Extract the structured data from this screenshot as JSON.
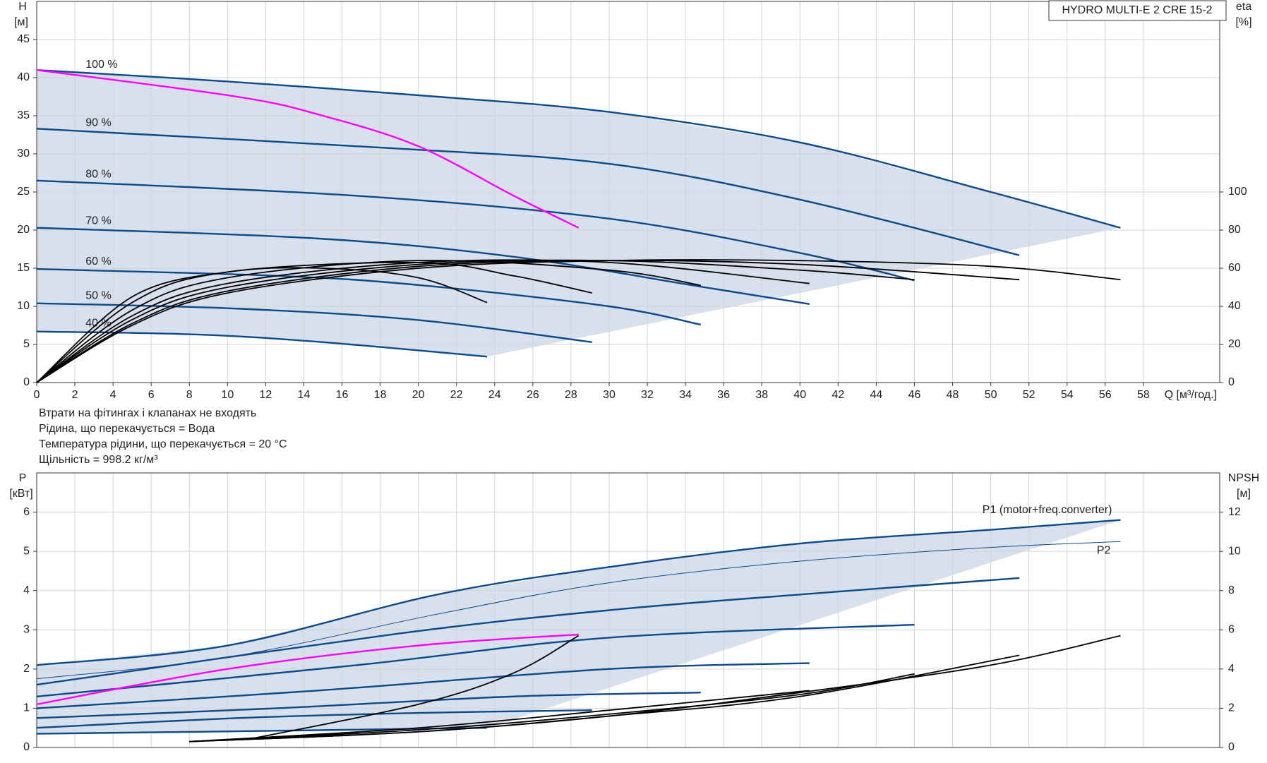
{
  "chart_data": [
    {
      "type": "line",
      "title": "HYDRO MULTI-E 2 CRE 15-2",
      "y_label": "H",
      "y_unit": "[м]",
      "y2_label": "eta",
      "y2_unit": "[%]",
      "x_label": "Q [м³/год.]",
      "annotations": [
        "Втрати на фітингах і клапанах не входять",
        "Рідина, що перекачується = Вода",
        "Температура рідини, що перекачується = 20 °C",
        "Щільність = 998.2 кг/м³"
      ],
      "xlim": [
        0,
        62
      ],
      "ylim": [
        0,
        50
      ],
      "y2lim": [
        0,
        200
      ],
      "xticks": [
        0,
        2,
        4,
        6,
        8,
        10,
        12,
        14,
        16,
        18,
        20,
        22,
        24,
        26,
        28,
        30,
        32,
        34,
        36,
        38,
        40,
        42,
        44,
        46,
        48,
        50,
        52,
        54,
        56,
        58
      ],
      "yticks": [
        0,
        5,
        10,
        15,
        20,
        25,
        30,
        35,
        40,
        45
      ],
      "y2ticks": [
        0,
        20,
        40,
        60,
        80,
        100
      ],
      "grid": true,
      "series": [
        {
          "name": "100 %",
          "color": "#0d4a8a",
          "x": [
            0,
            10,
            21,
            30,
            40,
            50,
            56.8
          ],
          "values": [
            41,
            39.5,
            37.5,
            35.5,
            31.5,
            25,
            20.3
          ]
        },
        {
          "name": "90 %",
          "color": "#0d4a8a",
          "x": [
            0,
            18.9,
            30,
            40,
            51.5
          ],
          "values": [
            33.3,
            30.7,
            28.7,
            24,
            16.7
          ]
        },
        {
          "name": "80 %",
          "color": "#0d4a8a",
          "x": [
            0,
            16.8,
            30,
            40,
            46
          ],
          "values": [
            26.5,
            24.5,
            21.5,
            17,
            13.4
          ]
        },
        {
          "name": "70 %",
          "color": "#0d4a8a",
          "x": [
            0,
            14.7,
            25,
            35,
            40.5
          ],
          "values": [
            20.3,
            18.9,
            16.5,
            12.5,
            10.3
          ]
        },
        {
          "name": "60 %",
          "color": "#0d4a8a",
          "x": [
            0,
            12.6,
            20,
            30,
            34.8
          ],
          "values": [
            14.9,
            14,
            12.8,
            10,
            7.6
          ]
        },
        {
          "name": "50 %",
          "color": "#0d4a8a",
          "x": [
            0,
            10.5,
            20,
            29.1
          ],
          "values": [
            10.4,
            9.7,
            8.2,
            5.3
          ]
        },
        {
          "name": "40 %",
          "color": "#0d4a8a",
          "x": [
            0,
            8.4,
            15,
            23.6
          ],
          "values": [
            6.7,
            6.3,
            5.3,
            3.4
          ]
        },
        {
          "color": "#ff00ff",
          "x": [
            0,
            10.5,
            15,
            20,
            25,
            28.4
          ],
          "values": [
            41,
            37.5,
            35,
            31,
            24.5,
            20.3
          ]
        },
        {
          "color": "#000000",
          "axis": "y2",
          "x": [
            0,
            5,
            10,
            20,
            30,
            40,
            50,
            56.8
          ],
          "values": [
            0,
            30,
            47,
            60,
            64,
            64,
            61,
            54
          ]
        },
        {
          "color": "#000000",
          "axis": "y2",
          "x": [
            0,
            5,
            10,
            20,
            30,
            40,
            51.5
          ],
          "values": [
            0,
            31,
            48,
            61,
            64,
            62,
            54
          ]
        },
        {
          "color": "#000000",
          "axis": "y2",
          "x": [
            0,
            5,
            10,
            20,
            30,
            40,
            46
          ],
          "values": [
            0,
            33,
            50,
            62,
            64,
            59,
            54
          ]
        },
        {
          "color": "#000000",
          "axis": "y2",
          "x": [
            0,
            5,
            10,
            20,
            30,
            40.5
          ],
          "values": [
            0,
            35,
            52,
            63,
            63,
            52
          ]
        },
        {
          "color": "#000000",
          "axis": "y2",
          "x": [
            0,
            5,
            10,
            20,
            30,
            34.8
          ],
          "values": [
            0,
            38,
            55,
            64,
            59,
            51
          ]
        },
        {
          "color": "#000000",
          "axis": "y2",
          "x": [
            0,
            5,
            10,
            20,
            25,
            29.1
          ],
          "values": [
            0,
            42,
            58,
            63,
            56,
            47
          ]
        },
        {
          "color": "#000000",
          "axis": "y2",
          "x": [
            0,
            5,
            10,
            15,
            20,
            23.6
          ],
          "values": [
            0,
            45,
            58,
            60,
            55,
            42
          ]
        }
      ]
    },
    {
      "type": "line",
      "y_label": "P",
      "y_unit": "[кВт]",
      "y2_label": "NPSH",
      "y2_unit": "[м]",
      "xlim": [
        0,
        62
      ],
      "ylim": [
        0,
        7
      ],
      "y2lim": [
        0,
        14
      ],
      "xticks": [
        0,
        2,
        4,
        6,
        8,
        10,
        12,
        14,
        16,
        18,
        20,
        22,
        24,
        26,
        28,
        30,
        32,
        34,
        36,
        38,
        40,
        42,
        44,
        46,
        48,
        50,
        52,
        54,
        56,
        58
      ],
      "yticks": [
        0,
        1,
        2,
        3,
        4,
        5,
        6
      ],
      "y2ticks": [
        0,
        2,
        4,
        6,
        8,
        10,
        12
      ],
      "grid": true,
      "series": [
        {
          "name": "P1 (motor+freq.converter)",
          "color": "#0d4a8a",
          "x": [
            0,
            10,
            21,
            30,
            40,
            50,
            56.8
          ],
          "values": [
            2.1,
            2.6,
            3.9,
            4.6,
            5.2,
            5.55,
            5.8
          ]
        },
        {
          "name": "P2",
          "color": "#0d4a8a",
          "x": [
            0,
            10,
            21,
            30,
            40,
            50,
            56.8
          ],
          "values": [
            1.75,
            2.3,
            3.4,
            4.2,
            4.75,
            5.1,
            5.25
          ]
        },
        {
          "color": "#0d4a8a",
          "x": [
            0,
            18.9,
            30,
            40,
            51.5
          ],
          "values": [
            1.6,
            2.9,
            3.5,
            3.9,
            4.32
          ]
        },
        {
          "color": "#0d4a8a",
          "x": [
            0,
            16.8,
            30,
            46
          ],
          "values": [
            1.3,
            2.1,
            2.8,
            3.13
          ]
        },
        {
          "color": "#0d4a8a",
          "x": [
            0,
            14.7,
            30,
            40.5
          ],
          "values": [
            1.0,
            1.45,
            2.0,
            2.15
          ]
        },
        {
          "color": "#0d4a8a",
          "x": [
            0,
            12.6,
            25,
            34.8
          ],
          "values": [
            0.75,
            1.0,
            1.3,
            1.4
          ]
        },
        {
          "color": "#0d4a8a",
          "x": [
            0,
            10.5,
            20,
            29.1
          ],
          "values": [
            0.5,
            0.75,
            0.88,
            0.95
          ]
        },
        {
          "color": "#0d4a8a",
          "x": [
            0,
            8.4,
            23.6
          ],
          "values": [
            0.35,
            0.4,
            0.5
          ]
        },
        {
          "color": "#ff00ff",
          "x": [
            0,
            10,
            20,
            28.4
          ],
          "values": [
            1.1,
            2.0,
            2.6,
            2.88
          ]
        },
        {
          "color": "#000000",
          "axis": "y2",
          "x": [
            8,
            20,
            30,
            40,
            50,
            56.8
          ],
          "values": [
            0.3,
            0.8,
            1.6,
            2.8,
            4.2,
            5.7
          ]
        },
        {
          "color": "#000000",
          "axis": "y2",
          "x": [
            8,
            20,
            30,
            40,
            51.5
          ],
          "values": [
            0.3,
            0.8,
            1.6,
            2.6,
            4.7
          ]
        },
        {
          "color": "#000000",
          "axis": "y2",
          "x": [
            8,
            20,
            30,
            40,
            46
          ],
          "values": [
            0.3,
            0.9,
            1.7,
            2.7,
            3.75
          ]
        },
        {
          "color": "#000000",
          "axis": "y2",
          "x": [
            8,
            20,
            30,
            40.5
          ],
          "values": [
            0.3,
            1.0,
            1.9,
            2.9
          ]
        },
        {
          "color": "#000000",
          "axis": "y2",
          "x": [
            11,
            20,
            25,
            28.4
          ],
          "values": [
            0.4,
            2.2,
            3.8,
            5.7
          ]
        }
      ]
    }
  ]
}
